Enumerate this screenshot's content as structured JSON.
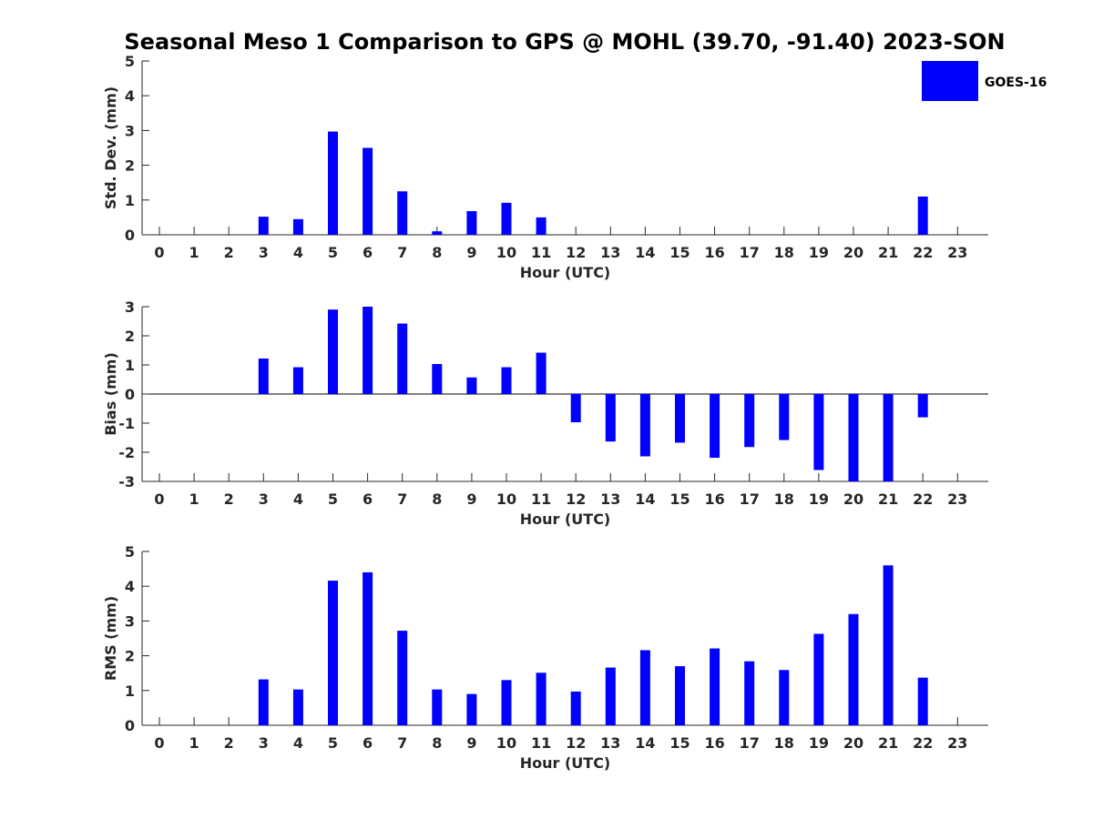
{
  "chart_data": [
    {
      "type": "bar",
      "title": "Seasonal Meso 1 Comparison to GPS @ MOHL (39.70, -91.40) 2023-SON",
      "xlabel": "Hour (UTC)",
      "ylabel": "Std. Dev. (mm)",
      "ylim": [
        0,
        5
      ],
      "yticks": [
        0,
        1,
        2,
        3,
        4,
        5
      ],
      "categories": [
        "0",
        "1",
        "2",
        "3",
        "4",
        "5",
        "6",
        "7",
        "8",
        "9",
        "10",
        "11",
        "12",
        "13",
        "14",
        "15",
        "16",
        "17",
        "18",
        "19",
        "20",
        "21",
        "22",
        "23"
      ],
      "series": [
        {
          "name": "GOES-16",
          "color": "#0000ff",
          "values": [
            null,
            null,
            null,
            0.52,
            0.45,
            2.97,
            2.5,
            1.25,
            0.1,
            0.68,
            0.92,
            0.5,
            null,
            null,
            null,
            null,
            null,
            null,
            null,
            null,
            null,
            null,
            1.1,
            null
          ]
        }
      ],
      "legend": {
        "entries": [
          "GOES-16"
        ],
        "placement": "top-right"
      }
    },
    {
      "type": "bar",
      "xlabel": "Hour (UTC)",
      "ylabel": "Bias (mm)",
      "ylim": [
        -3,
        3
      ],
      "yticks": [
        -3,
        -2,
        -1,
        0,
        1,
        2,
        3
      ],
      "categories": [
        "0",
        "1",
        "2",
        "3",
        "4",
        "5",
        "6",
        "7",
        "8",
        "9",
        "10",
        "11",
        "12",
        "13",
        "14",
        "15",
        "16",
        "17",
        "18",
        "19",
        "20",
        "21",
        "22",
        "23"
      ],
      "series": [
        {
          "name": "GOES-16",
          "color": "#0000ff",
          "values": [
            null,
            null,
            null,
            1.22,
            0.92,
            2.9,
            3.0,
            2.42,
            1.03,
            0.57,
            0.92,
            1.42,
            -0.97,
            -1.63,
            -2.14,
            -1.67,
            -2.19,
            -1.82,
            -1.58,
            -2.61,
            -3.0,
            -3.0,
            -0.8,
            null
          ]
        }
      ]
    },
    {
      "type": "bar",
      "xlabel": "Hour (UTC)",
      "ylabel": "RMS (mm)",
      "ylim": [
        0,
        5
      ],
      "yticks": [
        0,
        1,
        2,
        3,
        4,
        5
      ],
      "categories": [
        "0",
        "1",
        "2",
        "3",
        "4",
        "5",
        "6",
        "7",
        "8",
        "9",
        "10",
        "11",
        "12",
        "13",
        "14",
        "15",
        "16",
        "17",
        "18",
        "19",
        "20",
        "21",
        "22",
        "23"
      ],
      "series": [
        {
          "name": "GOES-16",
          "color": "#0000ff",
          "values": [
            null,
            null,
            null,
            1.32,
            1.03,
            4.16,
            4.4,
            2.72,
            1.03,
            0.9,
            1.3,
            1.51,
            0.97,
            1.66,
            2.16,
            1.7,
            2.21,
            1.84,
            1.59,
            2.63,
            3.2,
            4.6,
            1.37,
            null
          ]
        }
      ]
    }
  ]
}
